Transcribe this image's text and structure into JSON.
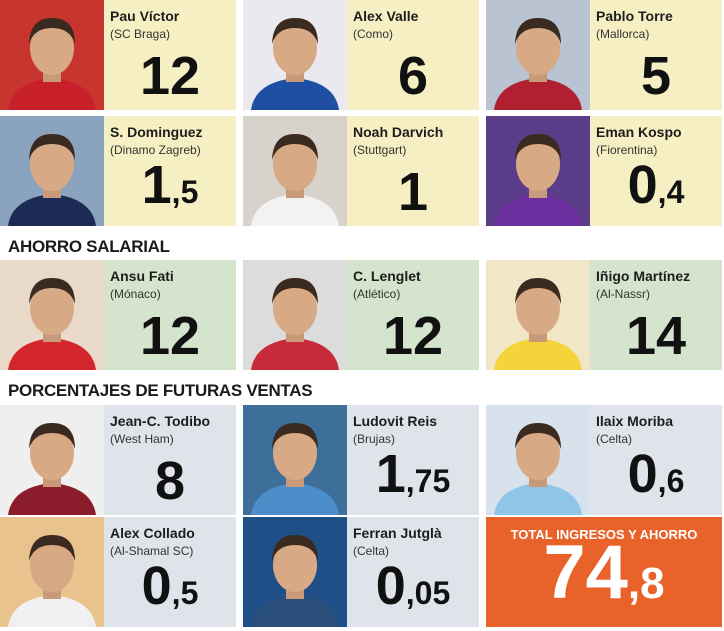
{
  "sections": [
    {
      "players": [
        {
          "name": "Pau Víctor",
          "club": "(SC Braga)",
          "value": "12"
        },
        {
          "name": "Alex Valle",
          "club": "(Como)",
          "value": "6"
        },
        {
          "name": "Pablo Torre",
          "club": "(Mallorca)",
          "value": "5"
        },
        {
          "name": "S. Dominguez",
          "club": "(Dinamo Zagreb)",
          "value": "1,5"
        },
        {
          "name": "Noah Darvich",
          "club": "(Stuttgart)",
          "value": "1"
        },
        {
          "name": "Eman Kospo",
          "club": "(Fiorentina)",
          "value": "0,4"
        }
      ]
    },
    {
      "title": "AHORRO SALARIAL",
      "players": [
        {
          "name": "Ansu Fati",
          "club": "(Mónaco)",
          "value": "12"
        },
        {
          "name": "C. Lenglet",
          "club": "(Atlético)",
          "value": "12"
        },
        {
          "name": "Iñigo Martínez",
          "club": "(Al-Nassr)",
          "value": "14"
        }
      ]
    },
    {
      "title": "PORCENTAJES DE FUTURAS VENTAS",
      "players": [
        {
          "name": "Jean-C. Todibo",
          "club": "(West Ham)",
          "value": "8"
        },
        {
          "name": "Ludovit Reis",
          "club": "(Brujas)",
          "value": "1,75"
        },
        {
          "name": "Ilaix Moriba",
          "club": "(Celta)",
          "value": "0,6"
        },
        {
          "name": "Alex Collado",
          "club": "(Al-Shamal SC)",
          "value": "0,5"
        },
        {
          "name": "Ferran Jutglà",
          "club": "(Celta)",
          "value": "0,05"
        }
      ]
    }
  ],
  "total": {
    "label": "TOTAL INGRESOS Y AHORRO",
    "value": "74,8"
  }
}
